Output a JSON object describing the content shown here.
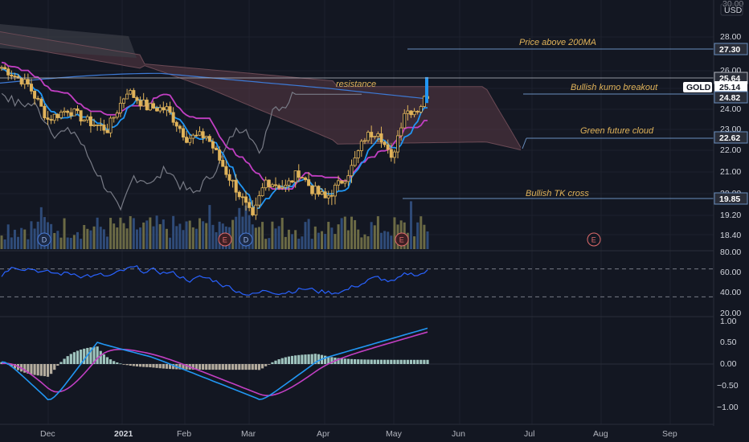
{
  "header": {
    "top_price": "30.00",
    "currency": "USD"
  },
  "price_axis": {
    "ticks": [
      "28.00",
      "26.00",
      "25.00",
      "24.00",
      "23.00",
      "22.00",
      "21.00",
      "20.00",
      "19.20",
      "18.40"
    ],
    "badges": [
      {
        "value": "27.30",
        "color": "#2a2e39",
        "border": "#6a8fbf"
      },
      {
        "value": "25.64",
        "color": "#2a2e39",
        "border": "#b2b5be"
      },
      {
        "value": "25.14",
        "color": "#ffffff",
        "text_color": "#131722",
        "label": "GOLD"
      },
      {
        "value": "24.82",
        "color": "#2a2e39",
        "border": "#6a8fbf"
      },
      {
        "value": "22.62",
        "color": "#2a2e39",
        "border": "#6a8fbf"
      },
      {
        "value": "19.85",
        "color": "#2a2e39",
        "border": "#6a8fbf"
      }
    ]
  },
  "rsi_axis": {
    "ticks": [
      "80.00",
      "60.00",
      "40.00",
      "20.00"
    ]
  },
  "macd_axis": {
    "ticks": [
      "1.00",
      "0.50",
      "0.00",
      "−0.50",
      "−1.00"
    ]
  },
  "time_axis": {
    "labels": [
      "Dec",
      "2021",
      "Feb",
      "Mar",
      "Apr",
      "May",
      "Jun",
      "Jul",
      "Aug",
      "Sep"
    ]
  },
  "annotations": [
    {
      "text": "Price above 200MA"
    },
    {
      "text": "resistance"
    },
    {
      "text": "Bullish kumo breakout"
    },
    {
      "text": "Green future cloud"
    },
    {
      "text": "Bullish TK cross"
    }
  ],
  "events": [
    {
      "letter": "D",
      "kind": "dividend"
    },
    {
      "letter": "E",
      "kind": "earnings"
    },
    {
      "letter": "D",
      "kind": "dividend"
    },
    {
      "letter": "E",
      "kind": "earnings"
    },
    {
      "letter": "E",
      "kind": "earnings-future"
    }
  ],
  "colors": {
    "background": "#131722",
    "bull_candle": "#e0b35a",
    "bear_candle": "#e0b35a",
    "kijun": "#c23fc3",
    "tenkan": "#2196f3",
    "ma200": "#3d7ad6",
    "cloud_bear": "#5b3a46",
    "cloud_bull": "#3a3f4b",
    "lagging": "#787b86",
    "rsi": "#2962ff",
    "macd_line": "#2196f3",
    "signal_line": "#c23fc3",
    "hist_pos": "#b9e3d9",
    "hist_neg": "#d1c7b4",
    "volume_up": "#6b6a45",
    "volume_down": "#2f4b78"
  },
  "chart_data": {
    "type": "candlestick",
    "symbol": "GOLD",
    "price_range": [
      18.0,
      30.0
    ],
    "rsi_range": [
      0,
      100
    ],
    "macd_range": [
      -1.2,
      1.05
    ]
  }
}
